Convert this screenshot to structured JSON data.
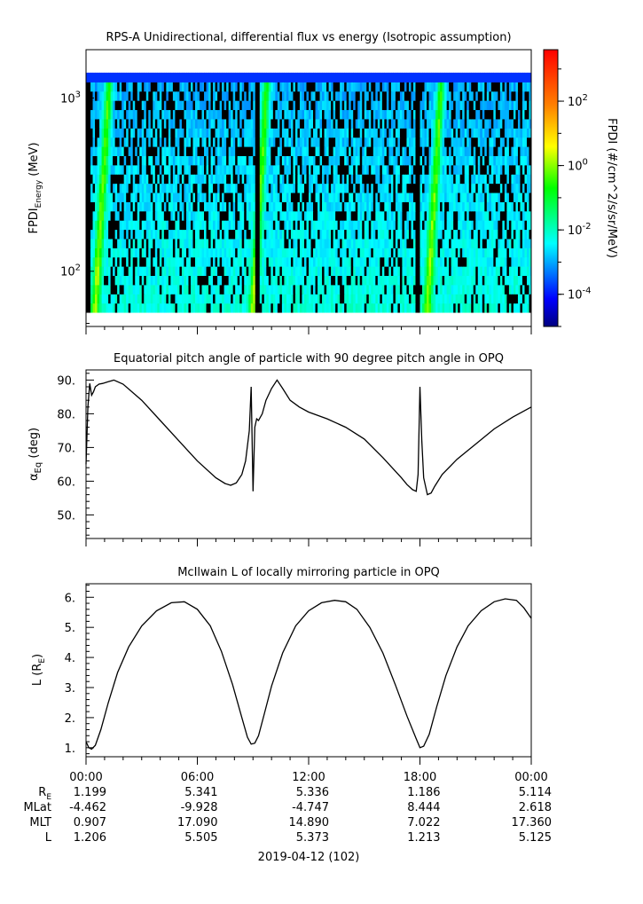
{
  "colors": {
    "axis": "#000000",
    "line": "#000000",
    "background": "#ffffff"
  },
  "chart_data": [
    {
      "type": "heatmap",
      "title": "RPS-A Unidirectional, differential flux vs energy (Isotropic assumption)",
      "ylabel_main": "FPDI",
      "ylabel_sub": "Energy",
      "ylabel_unit": " (MeV)",
      "yscale": "log",
      "ylim": [
        48,
        1900
      ],
      "yticks": [
        {
          "value": 100,
          "base": "10",
          "exp": "2"
        },
        {
          "value": 1000,
          "base": "10",
          "exp": "3"
        }
      ],
      "xlim": [
        0,
        24
      ],
      "energy_range_mev": [
        58,
        1400
      ],
      "colorbar": {
        "label": "FPDI (#/cm^2/s/sr/MeV)",
        "scale": "log",
        "range_exp": [
          -5,
          3.6
        ],
        "ticks": [
          {
            "value": 100,
            "base": "10",
            "exp": "2"
          },
          {
            "value": 1,
            "base": "10",
            "exp": "0"
          },
          {
            "value": 0.01,
            "base": "10",
            "exp": "-2"
          },
          {
            "value": 0.0001,
            "base": "10",
            "exp": "-4"
          }
        ]
      },
      "peaks_hours": [
        0.5,
        9.0,
        18.4
      ],
      "gaps_hours": [
        0.1,
        9.25,
        17.9
      ]
    },
    {
      "type": "line",
      "title": "Equatorial pitch angle of particle with 90 degree pitch angle in OPQ",
      "ylabel_main": "α",
      "ylabel_sub": "Eq",
      "ylabel_unit": " (deg)",
      "ylim": [
        43,
        93
      ],
      "yticks": [
        50,
        60,
        70,
        80,
        90
      ],
      "ytick_labels": [
        "50.",
        "60.",
        "70.",
        "80.",
        "90."
      ],
      "xlim": [
        0,
        24
      ],
      "x": [
        0.0,
        0.1,
        0.2,
        0.3,
        0.4,
        0.5,
        0.7,
        0.9,
        1.2,
        1.5,
        2.0,
        3.0,
        4.0,
        5.0,
        6.0,
        7.0,
        7.5,
        7.8,
        8.1,
        8.4,
        8.6,
        8.8,
        8.9,
        9.0,
        9.1,
        9.2,
        9.3,
        9.5,
        9.7,
        10.0,
        10.3,
        10.6,
        11.0,
        11.5,
        12.0,
        13.0,
        14.0,
        15.0,
        16.0,
        17.0,
        17.3,
        17.6,
        17.8,
        17.9,
        18.0,
        18.1,
        18.2,
        18.4,
        18.6,
        18.8,
        19.2,
        20.0,
        21.0,
        22.0,
        23.0,
        24.0
      ],
      "y": [
        65.0,
        82.0,
        89.0,
        85.5,
        86.5,
        88.0,
        88.8,
        89.0,
        89.5,
        90.0,
        88.8,
        84.0,
        78.0,
        72.0,
        66.0,
        61.0,
        59.3,
        58.8,
        59.5,
        62.0,
        66.0,
        75.0,
        88.0,
        57.0,
        76.0,
        78.5,
        78.0,
        80.0,
        84.0,
        87.5,
        90.0,
        87.5,
        84.0,
        82.0,
        80.5,
        78.5,
        76.0,
        72.5,
        67.0,
        61.0,
        59.0,
        57.5,
        57.0,
        62.0,
        88.0,
        72.0,
        61.0,
        56.0,
        56.5,
        58.5,
        62.0,
        66.5,
        71.0,
        75.5,
        79.0,
        82.0
      ]
    },
    {
      "type": "line",
      "title": "McIlwain L of locally mirroring particle in OPQ",
      "ylabel_main": "L (R",
      "ylabel_sub": "E",
      "ylabel_unit": ")",
      "ylim": [
        0.7,
        6.45
      ],
      "yticks": [
        1,
        2,
        3,
        4,
        5,
        6
      ],
      "ytick_labels": [
        "1.",
        "2.",
        "3.",
        "4.",
        "5.",
        "6."
      ],
      "xlim": [
        0,
        24
      ],
      "x": [
        0.0,
        0.15,
        0.3,
        0.5,
        0.8,
        1.2,
        1.7,
        2.3,
        3.0,
        3.8,
        4.6,
        5.3,
        6.0,
        6.7,
        7.3,
        7.9,
        8.4,
        8.7,
        8.9,
        9.1,
        9.3,
        9.6,
        10.0,
        10.6,
        11.3,
        12.0,
        12.7,
        13.4,
        14.0,
        14.6,
        15.3,
        16.0,
        16.7,
        17.3,
        17.8,
        18.0,
        18.2,
        18.5,
        18.9,
        19.4,
        20.0,
        20.6,
        21.3,
        22.0,
        22.6,
        23.2,
        23.6,
        24.0
      ],
      "y": [
        1.2,
        1.0,
        0.95,
        1.08,
        1.6,
        2.5,
        3.5,
        4.35,
        5.05,
        5.55,
        5.82,
        5.85,
        5.6,
        5.05,
        4.2,
        3.1,
        2.0,
        1.35,
        1.12,
        1.15,
        1.4,
        2.1,
        3.05,
        4.15,
        5.05,
        5.55,
        5.82,
        5.9,
        5.85,
        5.6,
        5.0,
        4.15,
        3.05,
        2.05,
        1.3,
        1.0,
        1.05,
        1.45,
        2.35,
        3.4,
        4.35,
        5.05,
        5.55,
        5.85,
        5.95,
        5.9,
        5.65,
        5.3
      ]
    }
  ],
  "time_axis": {
    "ticks": [
      {
        "value": 0,
        "label": "00:00"
      },
      {
        "value": 6,
        "label": "06:00"
      },
      {
        "value": 12,
        "label": "12:00"
      },
      {
        "value": 18,
        "label": "18:00"
      },
      {
        "value": 24,
        "label": "00:00"
      }
    ],
    "rows": [
      {
        "label_main": "R",
        "label_sub": "E",
        "values": [
          "1.199",
          "5.341",
          "5.336",
          "1.186",
          "5.114"
        ]
      },
      {
        "label_main": "MLat",
        "label_sub": "",
        "values": [
          "-4.462",
          "-9.928",
          "-4.747",
          "8.444",
          "2.618"
        ]
      },
      {
        "label_main": "MLT",
        "label_sub": "",
        "values": [
          "0.907",
          "17.090",
          "14.890",
          "7.022",
          "17.360"
        ]
      },
      {
        "label_main": "L",
        "label_sub": "",
        "values": [
          "1.206",
          "5.505",
          "5.373",
          "1.213",
          "5.125"
        ]
      }
    ],
    "date_label": "2019-04-12 (102)"
  }
}
